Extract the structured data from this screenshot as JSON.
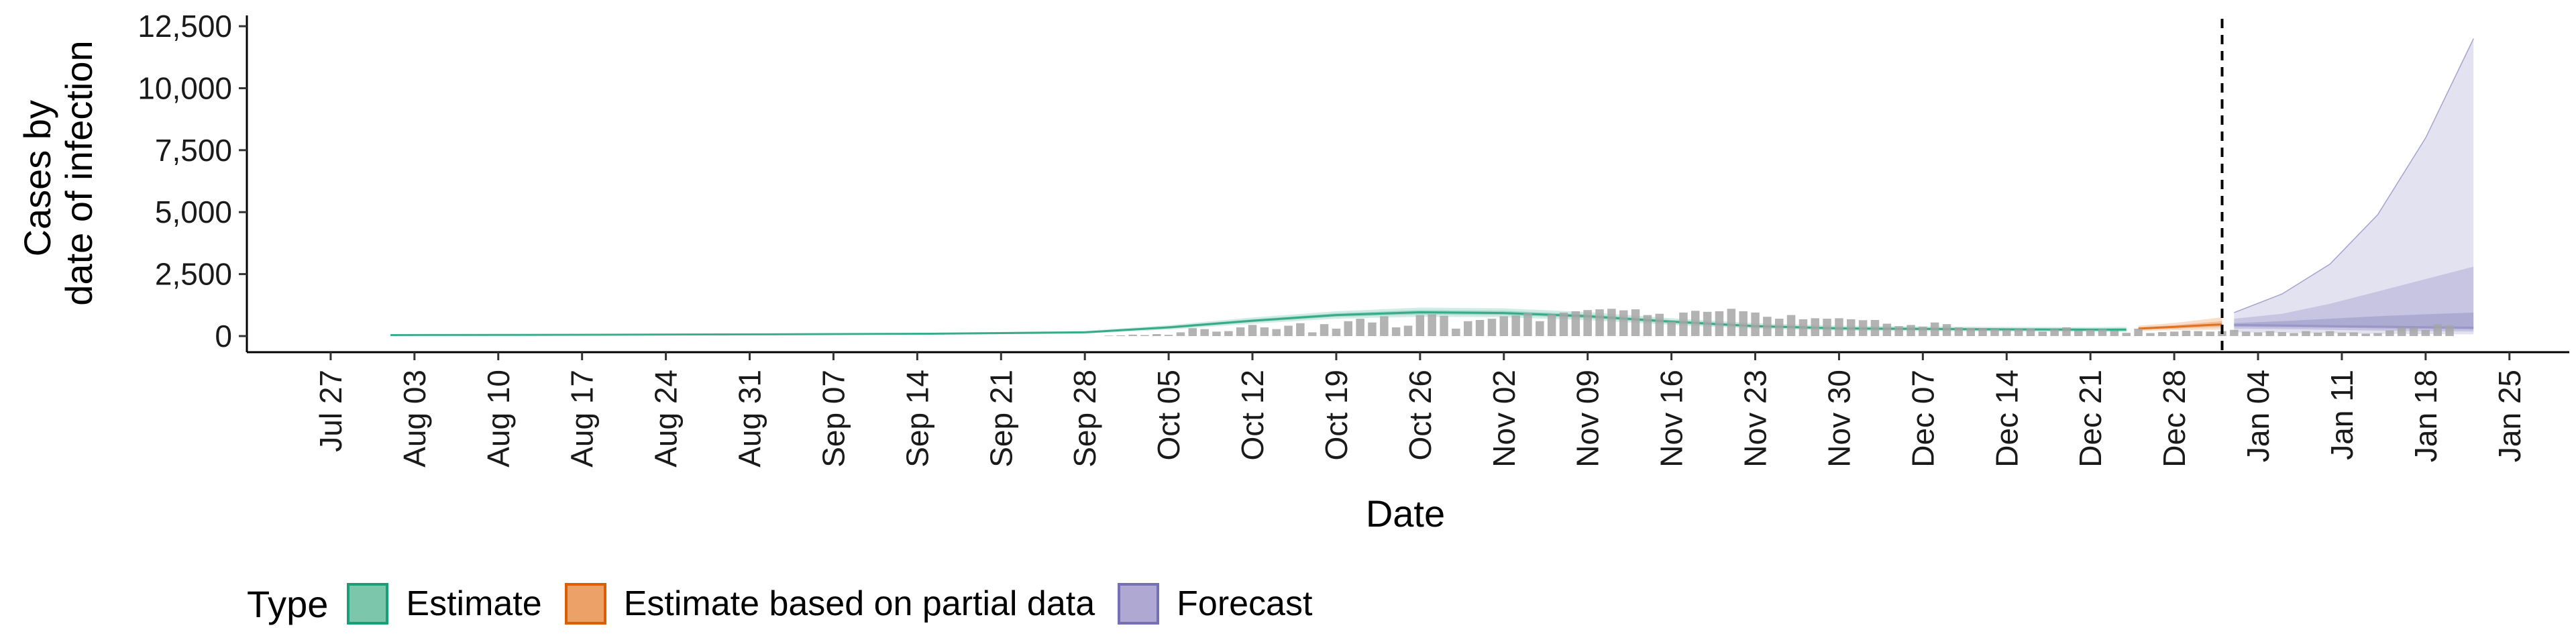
{
  "chart_data": {
    "type": "area",
    "xlabel": "Date",
    "ylabel": "Cases by date of infection",
    "ylabel_lines": [
      "Cases by",
      "date of infection"
    ],
    "x_ticks": [
      "Jul 27",
      "Aug 03",
      "Aug 10",
      "Aug 17",
      "Aug 24",
      "Aug 31",
      "Sep 07",
      "Sep 14",
      "Sep 21",
      "Sep 28",
      "Oct 05",
      "Oct 12",
      "Oct 19",
      "Oct 26",
      "Nov 02",
      "Nov 09",
      "Nov 16",
      "Nov 23",
      "Nov 30",
      "Dec 07",
      "Dec 14",
      "Dec 21",
      "Dec 28",
      "Jan 04",
      "Jan 11",
      "Jan 18",
      "Jan 25"
    ],
    "y_ticks": [
      "0",
      "2,500",
      "5,000",
      "7,500",
      "10,000",
      "12,500"
    ],
    "ylim": [
      -650,
      12800
    ],
    "xlim": [
      "2020-07-20",
      "2021-01-30"
    ],
    "grid": false,
    "legend_position": "bottom",
    "forecast_start": "2021-01-01",
    "legend": {
      "title": "Type",
      "items": [
        {
          "label": "Estimate",
          "fill": "#7cc7ac",
          "border": "#1b9e77"
        },
        {
          "label": "Estimate based on partial data",
          "fill": "#eba168",
          "border": "#d95f02"
        },
        {
          "label": "Forecast",
          "fill": "#aea8d3",
          "border": "#7570b3"
        }
      ]
    },
    "colors": {
      "estimate": "#1b9e77",
      "partial": "#d95f02",
      "forecast": "#7570b3",
      "bars": "#a6a6a6",
      "axis": "#000000",
      "forecast_line": "#000000"
    },
    "reported_cases": {
      "start": "2020-09-30",
      "values": [
        20,
        30,
        60,
        40,
        80,
        50,
        150,
        320,
        280,
        180,
        200,
        350,
        450,
        350,
        280,
        420,
        520,
        150,
        480,
        300,
        600,
        700,
        550,
        800,
        350,
        420,
        850,
        880,
        820,
        300,
        600,
        650,
        700,
        800,
        830,
        920,
        600,
        880,
        950,
        1000,
        1050,
        1080,
        1100,
        1040,
        1080,
        850,
        900,
        580,
        950,
        1020,
        980,
        1000,
        1100,
        1000,
        950,
        780,
        700,
        850,
        680,
        720,
        700,
        720,
        680,
        640,
        650,
        500,
        400,
        450,
        380,
        550,
        480,
        350,
        330,
        300,
        280,
        250,
        280,
        300,
        180,
        280,
        350,
        220,
        250,
        280,
        220,
        130,
        300,
        120,
        160,
        180,
        220,
        200,
        180,
        200,
        250,
        180,
        150,
        200,
        160,
        120,
        200,
        140,
        200,
        140,
        150,
        100,
        120,
        230,
        340,
        330,
        250,
        480,
        440
      ]
    },
    "series": [
      {
        "name": "Estimate",
        "dates": [
          "2020-08-01",
          "2020-08-15",
          "2020-09-01",
          "2020-09-15",
          "2020-09-28",
          "2020-10-05",
          "2020-10-12",
          "2020-10-19",
          "2020-10-26",
          "2020-11-02",
          "2020-11-09",
          "2020-11-16",
          "2020-11-23",
          "2020-11-30",
          "2020-12-07",
          "2020-12-14",
          "2020-12-21",
          "2020-12-24"
        ],
        "median": [
          40,
          50,
          70,
          95,
          150,
          350,
          620,
          850,
          960,
          930,
          800,
          580,
          400,
          310,
          290,
          270,
          260,
          260
        ],
        "lower_90": [
          20,
          25,
          40,
          60,
          100,
          260,
          500,
          700,
          780,
          760,
          640,
          450,
          300,
          220,
          200,
          180,
          170,
          160
        ],
        "upper_90": [
          70,
          80,
          100,
          130,
          210,
          440,
          750,
          1000,
          1150,
          1120,
          970,
          720,
          520,
          420,
          390,
          370,
          360,
          370
        ],
        "lower_50": [
          30,
          38,
          55,
          78,
          125,
          300,
          560,
          780,
          870,
          850,
          720,
          510,
          350,
          260,
          240,
          220,
          210,
          205
        ],
        "upper_50": [
          55,
          65,
          85,
          112,
          180,
          400,
          680,
          920,
          1050,
          1020,
          880,
          650,
          460,
          360,
          340,
          320,
          310,
          315
        ]
      },
      {
        "name": "Estimate based on partial data",
        "dates": [
          "2020-12-25",
          "2020-12-28",
          "2020-12-31",
          "2021-01-01"
        ],
        "median": [
          300,
          370,
          450,
          470
        ],
        "lower_90": [
          200,
          240,
          260,
          260
        ],
        "upper_90": [
          420,
          530,
          700,
          760
        ],
        "lower_50": [
          250,
          300,
          350,
          360
        ],
        "upper_50": [
          360,
          440,
          560,
          600
        ]
      },
      {
        "name": "Forecast",
        "dates": [
          "2021-01-02",
          "2021-01-06",
          "2021-01-10",
          "2021-01-14",
          "2021-01-18",
          "2021-01-22"
        ],
        "median": [
          450,
          430,
          400,
          380,
          360,
          340
        ],
        "lower_90": [
          150,
          130,
          110,
          90,
          80,
          70
        ],
        "upper_90": [
          950,
          1700,
          2900,
          4900,
          8000,
          12000
        ],
        "lower_50": [
          300,
          280,
          250,
          220,
          200,
          180
        ],
        "upper_50": [
          700,
          900,
          1300,
          1800,
          2300,
          2800
        ],
        "inner_lower": [
          380,
          360,
          340,
          310,
          290,
          270
        ],
        "inner_upper": [
          520,
          600,
          700,
          800,
          880,
          950
        ]
      }
    ]
  }
}
